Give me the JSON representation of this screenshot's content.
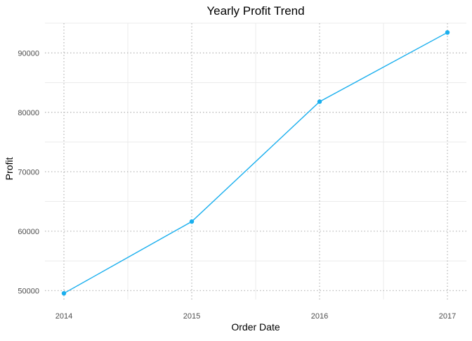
{
  "chart_data": {
    "type": "line",
    "title": "Yearly Profit Trend",
    "xlabel": "Order Date",
    "ylabel": "Profit",
    "x": [
      "2014",
      "2015",
      "2016",
      "2017"
    ],
    "series": [
      {
        "values": [
          49544,
          61619,
          81795,
          93439
        ],
        "color": "#1AAFEE"
      }
    ],
    "x_ticks": [
      "2014",
      "2015",
      "2016",
      "2017"
    ],
    "y_ticks": [
      "50000",
      "60000",
      "70000",
      "80000",
      "90000"
    ],
    "ylim": [
      48500,
      95000
    ],
    "grid": true,
    "grid_style": "dotted-major",
    "legend": "none"
  }
}
